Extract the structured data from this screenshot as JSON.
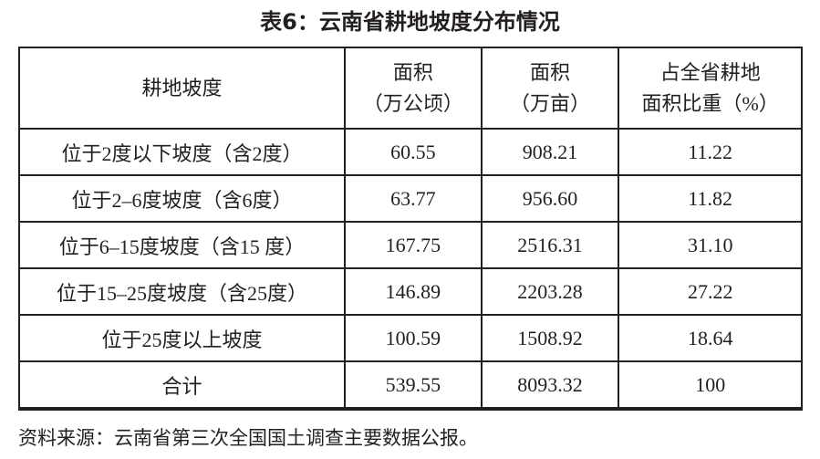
{
  "title": "表6：云南省耕地坡度分布情况",
  "table": {
    "headers": [
      {
        "line1": "耕地坡度",
        "line2": ""
      },
      {
        "line1": "面积",
        "line2": "（万公顷）"
      },
      {
        "line1": "面积",
        "line2": "（万亩）"
      },
      {
        "line1": "占全省耕地",
        "line2": "面积比重（%）"
      }
    ],
    "rows": [
      [
        "位于2度以下坡度（含2度）",
        "60.55",
        "908.21",
        "11.22"
      ],
      [
        "位于2–6度坡度（含6度）",
        "63.77",
        "956.60",
        "11.82"
      ],
      [
        "位于6–15度坡度（含15 度）",
        "167.75",
        "2516.31",
        "31.10"
      ],
      [
        "位于15–25度坡度（含25度）",
        "146.89",
        "2203.28",
        "27.22"
      ],
      [
        "位于25度以上坡度",
        "100.59",
        "1508.92",
        "18.64"
      ],
      [
        "合计",
        "539.55",
        "8093.32",
        "100"
      ]
    ]
  },
  "source_note": "资料来源：云南省第三次全国国土调查主要数据公报。"
}
